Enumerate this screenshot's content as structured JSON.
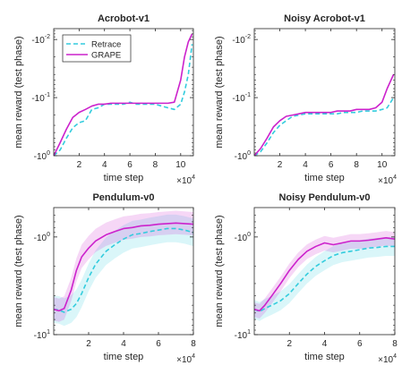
{
  "figure": {
    "background": "#ffffff",
    "axis_color": "#262626"
  },
  "chart_data": [
    {
      "type": "line",
      "title": "Acrobot-v1",
      "xlabel": "time step",
      "ylabel": "mean reward (test phase)",
      "x_exponent": "×10",
      "x_exponent_power": "4",
      "xlim": [
        0,
        11
      ],
      "xticks": [
        2,
        4,
        6,
        8,
        10
      ],
      "xtick_labels": [
        "2",
        "4",
        "6",
        "8",
        "10"
      ],
      "ylim": [
        -1.0,
        -0.0065
      ],
      "yscale": "neglog",
      "yticks": [
        -1.0,
        -0.1,
        -0.01
      ],
      "ytick_labels": [
        [
          "-10",
          "0"
        ],
        [
          "-10",
          "-1"
        ],
        [
          "-10",
          "-2"
        ]
      ],
      "legend": {
        "placement": "top-left",
        "entries": [
          "Retrace",
          "GRAPE"
        ]
      },
      "series": [
        {
          "name": "Retrace",
          "color": "#33ccdd",
          "dash": true,
          "x": [
            0,
            0.5,
            1,
            1.5,
            2,
            2.5,
            3,
            3.5,
            4,
            4.5,
            5,
            5.5,
            6,
            6.5,
            7,
            7.5,
            8,
            8.5,
            9,
            9.5,
            10,
            10.3,
            10.6,
            10.9
          ],
          "y": [
            -1.0,
            -0.8,
            -0.5,
            -0.33,
            -0.27,
            -0.25,
            -0.16,
            -0.15,
            -0.13,
            -0.13,
            -0.13,
            -0.13,
            -0.12,
            -0.13,
            -0.13,
            -0.13,
            -0.13,
            -0.14,
            -0.15,
            -0.16,
            -0.13,
            -0.08,
            -0.04,
            -0.012
          ]
        },
        {
          "name": "GRAPE",
          "color": "#cc22cc",
          "dash": false,
          "x": [
            0,
            0.5,
            1,
            1.5,
            2,
            2.5,
            3,
            3.5,
            4,
            4.5,
            5,
            5.5,
            6,
            6.5,
            7,
            7.5,
            8,
            8.5,
            9,
            9.5,
            10,
            10.3,
            10.6,
            10.9
          ],
          "y": [
            -1.0,
            -0.6,
            -0.35,
            -0.22,
            -0.18,
            -0.16,
            -0.14,
            -0.13,
            -0.13,
            -0.125,
            -0.125,
            -0.125,
            -0.125,
            -0.125,
            -0.125,
            -0.125,
            -0.125,
            -0.125,
            -0.125,
            -0.12,
            -0.05,
            -0.02,
            -0.011,
            -0.008
          ]
        }
      ]
    },
    {
      "type": "line",
      "title": "Noisy Acrobot-v1",
      "xlabel": "time step",
      "ylabel": "mean reward (test phase)",
      "x_exponent": "×10",
      "x_exponent_power": "4",
      "xlim": [
        0,
        11
      ],
      "xticks": [
        2,
        4,
        6,
        8,
        10
      ],
      "xtick_labels": [
        "2",
        "4",
        "6",
        "8",
        "10"
      ],
      "ylim": [
        -1.0,
        -0.0065
      ],
      "yscale": "neglog",
      "yticks": [
        -1.0,
        -0.1,
        -0.01
      ],
      "ytick_labels": [
        [
          "-10",
          "0"
        ],
        [
          "-10",
          "-1"
        ],
        [
          "-10",
          "-2"
        ]
      ],
      "series": [
        {
          "name": "Retrace",
          "color": "#33ccdd",
          "dash": true,
          "x": [
            0,
            0.5,
            1,
            1.5,
            2,
            2.5,
            3,
            3.5,
            4,
            4.5,
            5,
            5.5,
            6,
            6.5,
            7,
            7.5,
            8,
            8.5,
            9,
            9.5,
            10,
            10.4,
            10.9
          ],
          "y": [
            -1.0,
            -0.85,
            -0.6,
            -0.4,
            -0.3,
            -0.25,
            -0.21,
            -0.2,
            -0.19,
            -0.19,
            -0.19,
            -0.19,
            -0.19,
            -0.19,
            -0.18,
            -0.18,
            -0.18,
            -0.17,
            -0.17,
            -0.17,
            -0.16,
            -0.15,
            -0.1
          ]
        },
        {
          "name": "GRAPE",
          "color": "#cc22cc",
          "dash": false,
          "x": [
            0,
            0.5,
            1,
            1.5,
            2,
            2.5,
            3,
            3.5,
            4,
            4.5,
            5,
            5.5,
            6,
            6.5,
            7,
            7.5,
            8,
            8.5,
            9,
            9.5,
            10,
            10.4,
            10.9
          ],
          "y": [
            -1.0,
            -0.75,
            -0.5,
            -0.32,
            -0.25,
            -0.21,
            -0.2,
            -0.19,
            -0.18,
            -0.18,
            -0.18,
            -0.18,
            -0.18,
            -0.17,
            -0.17,
            -0.17,
            -0.16,
            -0.16,
            -0.16,
            -0.15,
            -0.12,
            -0.07,
            -0.04
          ]
        }
      ]
    },
    {
      "type": "line",
      "title": "Pendulum-v0",
      "xlabel": "time step",
      "ylabel": "mean reward (test phase)",
      "x_exponent": "×10",
      "x_exponent_power": "4",
      "xlim": [
        0,
        8
      ],
      "xticks": [
        2,
        4,
        6,
        8
      ],
      "xtick_labels": [
        "2",
        "4",
        "6",
        "8"
      ],
      "ylim": [
        -10.0,
        -0.5
      ],
      "yscale": "neglog",
      "yticks": [
        -1.0,
        -10.0
      ],
      "ytick_labels": [
        [
          "-10",
          "0"
        ],
        [
          "-10",
          "1"
        ]
      ],
      "series": [
        {
          "name": "Retrace",
          "color": "#33ccdd",
          "dash": true,
          "band": [
            0.72,
            1.38
          ],
          "x": [
            0,
            0.3,
            0.6,
            1,
            1.3,
            1.6,
            2,
            2.4,
            3,
            3.5,
            4,
            4.5,
            5,
            5.5,
            6,
            6.5,
            7,
            7.5,
            8
          ],
          "y": [
            -5.5,
            -5.6,
            -5.9,
            -5.5,
            -4.8,
            -3.8,
            -2.6,
            -1.9,
            -1.4,
            -1.2,
            -1.05,
            -0.95,
            -0.92,
            -0.88,
            -0.85,
            -0.82,
            -0.82,
            -0.85,
            -0.9
          ]
        },
        {
          "name": "GRAPE",
          "color": "#cc22cc",
          "dash": false,
          "band": [
            0.75,
            1.3
          ],
          "x": [
            0,
            0.3,
            0.6,
            1,
            1.3,
            1.6,
            2,
            2.4,
            3,
            3.5,
            4,
            4.5,
            5,
            5.5,
            6,
            6.5,
            7,
            7.5,
            8
          ],
          "y": [
            -5.5,
            -5.7,
            -5.4,
            -3.5,
            -2.2,
            -1.6,
            -1.3,
            -1.1,
            -0.95,
            -0.88,
            -0.82,
            -0.8,
            -0.77,
            -0.76,
            -0.74,
            -0.73,
            -0.72,
            -0.73,
            -0.74
          ]
        }
      ]
    },
    {
      "type": "line",
      "title": "Noisy Pendulum-v0",
      "xlabel": "time step",
      "ylabel": "mean reward (test phase)",
      "x_exponent": "×10",
      "x_exponent_power": "4",
      "xlim": [
        0,
        8
      ],
      "xticks": [
        2,
        4,
        6,
        8
      ],
      "xtick_labels": [
        "2",
        "4",
        "6",
        "8"
      ],
      "ylim": [
        -10.0,
        -0.5
      ],
      "yscale": "neglog",
      "yticks": [
        -1.0,
        -10.0
      ],
      "ytick_labels": [
        [
          "-10",
          "0"
        ],
        [
          "-10",
          "1"
        ]
      ],
      "series": [
        {
          "name": "Retrace",
          "color": "#33ccdd",
          "dash": true,
          "band": [
            0.8,
            1.25
          ],
          "x": [
            0,
            0.3,
            0.6,
            1,
            1.5,
            2,
            2.5,
            3,
            3.5,
            4,
            4.5,
            5,
            5.5,
            6,
            6.5,
            7,
            7.5,
            8
          ],
          "y": [
            -5.5,
            -5.8,
            -5.4,
            -5.0,
            -4.5,
            -3.8,
            -3.0,
            -2.4,
            -2.0,
            -1.75,
            -1.55,
            -1.45,
            -1.4,
            -1.35,
            -1.3,
            -1.28,
            -1.25,
            -1.25
          ]
        },
        {
          "name": "GRAPE",
          "color": "#cc22cc",
          "dash": false,
          "band": [
            0.85,
            1.2
          ],
          "x": [
            0,
            0.3,
            0.6,
            1,
            1.5,
            2,
            2.5,
            3,
            3.5,
            4,
            4.5,
            5,
            5.5,
            6,
            6.5,
            7,
            7.5,
            8
          ],
          "y": [
            -5.5,
            -5.7,
            -5.0,
            -4.0,
            -3.0,
            -2.2,
            -1.7,
            -1.4,
            -1.25,
            -1.15,
            -1.2,
            -1.15,
            -1.1,
            -1.1,
            -1.08,
            -1.05,
            -1.02,
            -1.05
          ]
        }
      ]
    }
  ]
}
